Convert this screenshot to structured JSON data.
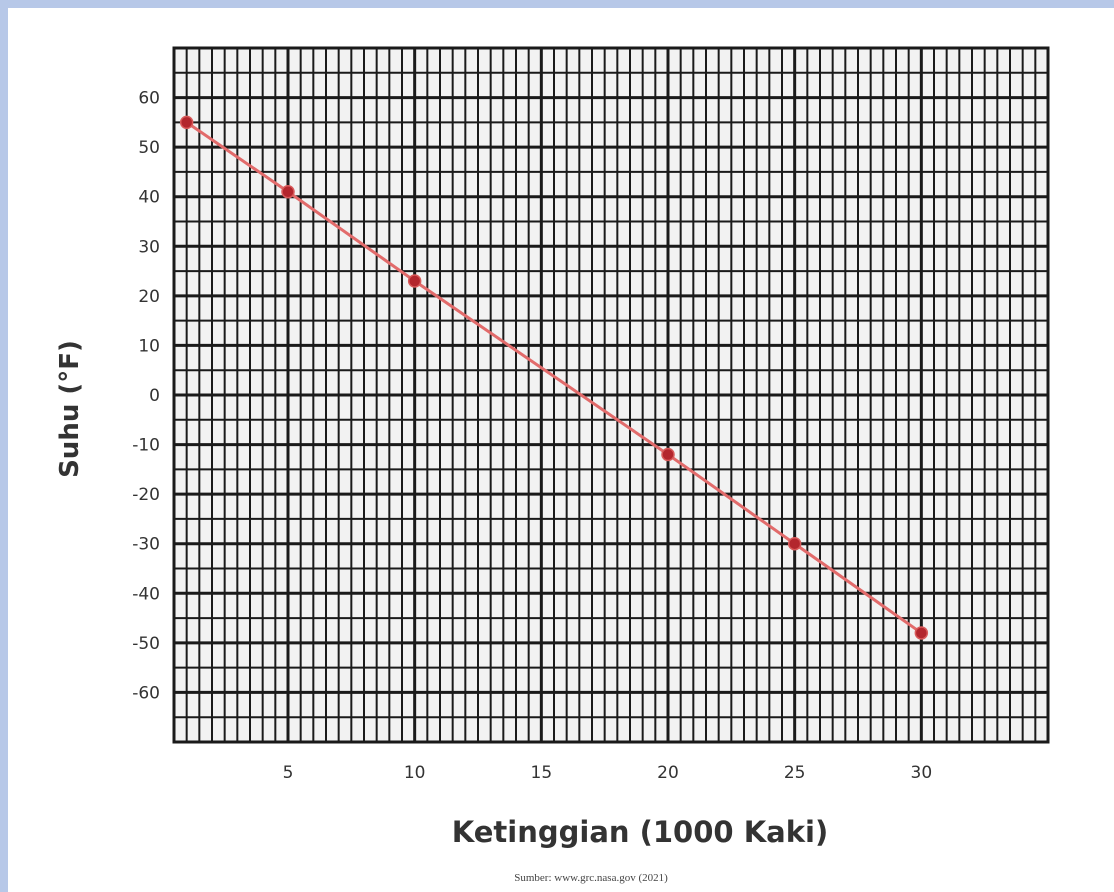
{
  "chart_data": {
    "type": "line",
    "title": "",
    "xlabel": "Ketinggian (1000 Kaki)",
    "ylabel": "Suhu (°F)",
    "x_ticks": [
      "5",
      "10",
      "15",
      "20",
      "25",
      "30"
    ],
    "y_ticks": [
      "60",
      "50",
      "40",
      "30",
      "20",
      "10",
      "0",
      "-10",
      "-20",
      "-30",
      "-40",
      "-50",
      "-60"
    ],
    "xlim": [
      0.5,
      35
    ],
    "ylim": [
      -70,
      70
    ],
    "grid": true,
    "series": [
      {
        "x": [
          1,
          5,
          10,
          20,
          25,
          30
        ],
        "y": [
          55,
          41,
          23,
          -12,
          -30,
          -48
        ]
      }
    ],
    "source": "Sumber: www.grc.nasa.gov (2021)"
  },
  "colors": {
    "page_background": "#b7c8e8",
    "grid_line": "#1a1a1a",
    "grid_cell": "#f2f2f2",
    "series_line": "#e26b6b",
    "series_marker": "#b3262d"
  }
}
